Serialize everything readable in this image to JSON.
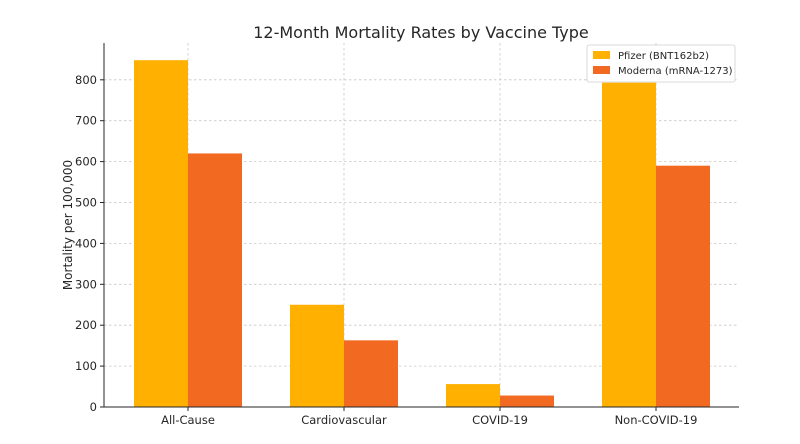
{
  "chart_data": {
    "type": "bar",
    "title": "12-Month Mortality Rates by Vaccine Type",
    "xlabel": "",
    "ylabel": "Mortality per 100,000",
    "categories": [
      "All-Cause",
      "Cardiovascular",
      "COVID-19",
      "Non-COVID-19"
    ],
    "series": [
      {
        "name": "Pfizer (BNT162b2)",
        "color": "#FFB000",
        "values": [
          848,
          250,
          56,
          793
        ]
      },
      {
        "name": "Moderna (mRNA-1273)",
        "color": "#F26A21",
        "values": [
          620,
          163,
          28,
          590
        ]
      }
    ],
    "ylim": [
      0,
      890
    ],
    "yticks": [
      0,
      100,
      200,
      300,
      400,
      500,
      600,
      700,
      800
    ],
    "grid": true,
    "legend": "top-right"
  }
}
